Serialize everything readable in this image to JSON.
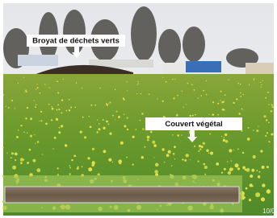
{
  "labels": [
    {
      "text": "Broyat de déchets verts"
    },
    {
      "text": "Couvert végétal"
    }
  ],
  "timestamp": "10/0"
}
